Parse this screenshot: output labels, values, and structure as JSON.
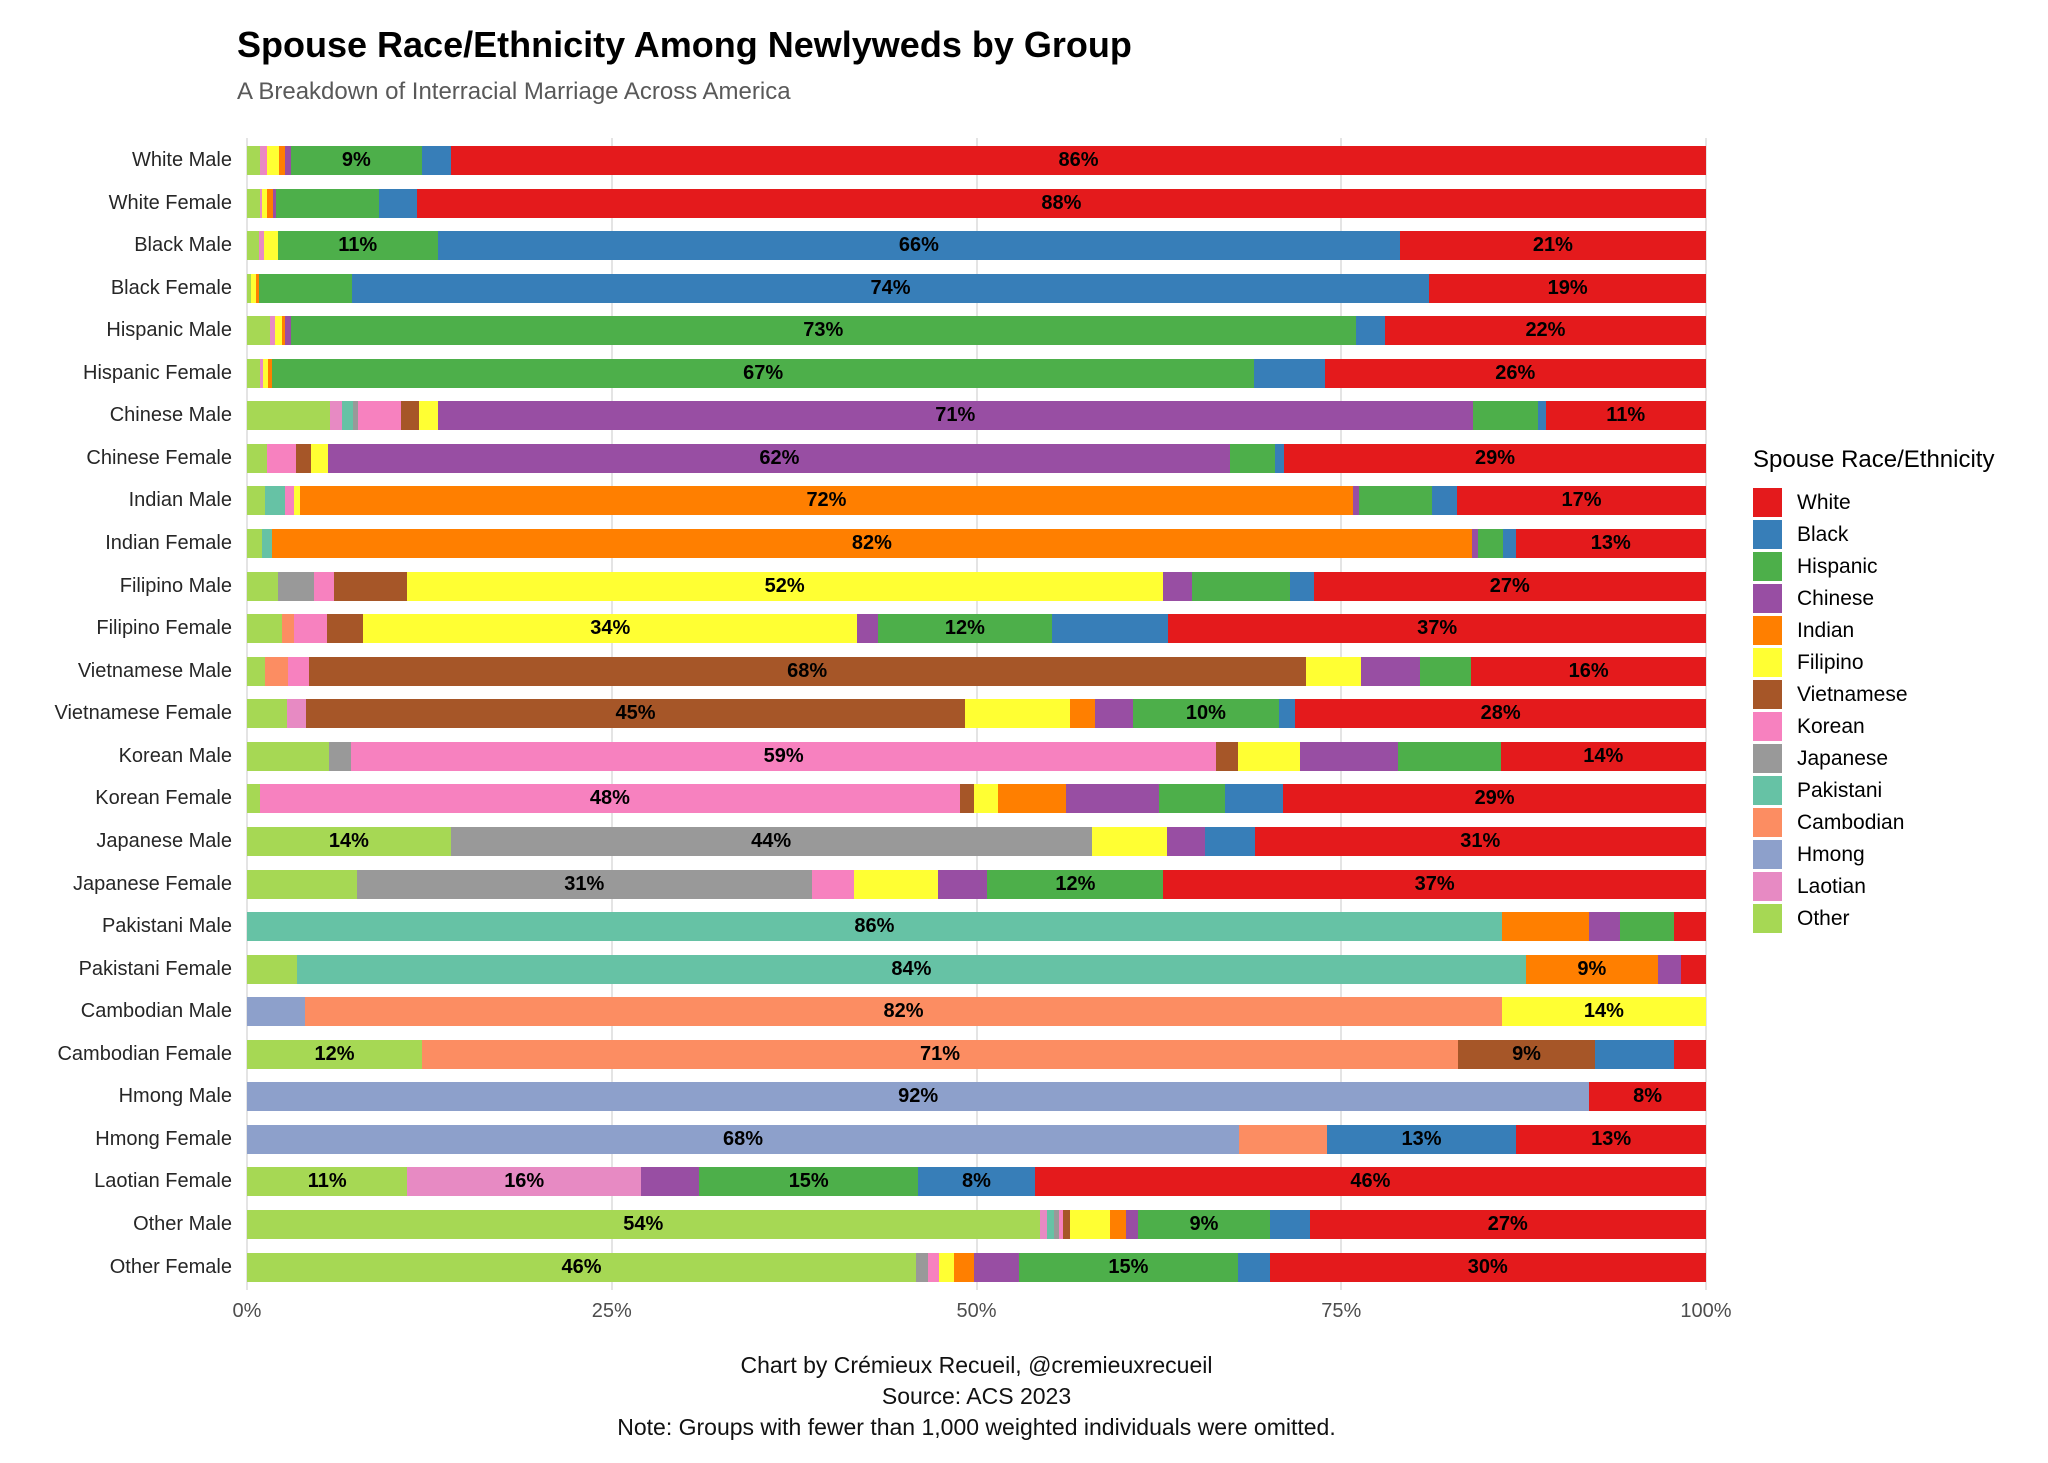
{
  "title": "Spouse Race/Ethnicity Among Newlyweds by Group",
  "subtitle": "A Breakdown of Interracial Marriage Across America",
  "legend": {
    "title": "Spouse Race/Ethnicity"
  },
  "footer": {
    "line1": "Chart by Crémieux Recueil, @cremieuxrecueil",
    "line2": "Source: ACS 2023",
    "line3": "Note: Groups with fewer than 1,000 weighted individuals were omitted."
  },
  "chart_data": {
    "type": "bar",
    "orientation": "horizontal",
    "stacked": true,
    "units": "percent of spouses",
    "xlim": [
      0,
      100
    ],
    "x_ticks": [
      "0%",
      "25%",
      "50%",
      "75%",
      "100%"
    ],
    "grid": true,
    "legend_position": "right",
    "legend_entries": [
      "White",
      "Black",
      "Hispanic",
      "Chinese",
      "Indian",
      "Filipino",
      "Vietnamese",
      "Korean",
      "Japanese",
      "Pakistani",
      "Cambodian",
      "Hmong",
      "Laotian",
      "Other"
    ],
    "colors": {
      "White": "#E41A1C",
      "Black": "#377EB8",
      "Hispanic": "#4DAF4A",
      "Chinese": "#984EA3",
      "Indian": "#FF7F00",
      "Filipino": "#FFFF33",
      "Vietnamese": "#A65628",
      "Korean": "#F781BF",
      "Japanese": "#999999",
      "Pakistani": "#66C2A5",
      "Cambodian": "#FC8D62",
      "Hmong": "#8DA0CB",
      "Laotian": "#E78AC3",
      "Other": "#A6D854"
    },
    "stack_order": [
      "Other",
      "Laotian",
      "Hmong",
      "Cambodian",
      "Pakistani",
      "Japanese",
      "Korean",
      "Vietnamese",
      "Filipino",
      "Indian",
      "Chinese",
      "Hispanic",
      "Black",
      "White"
    ],
    "rows": [
      {
        "group": "White Male",
        "segments": [
          {
            "e": "Other",
            "v": 0.9
          },
          {
            "e": "Laotian",
            "v": 0.3
          },
          {
            "e": "Korean",
            "v": 0.2
          },
          {
            "e": "Filipino",
            "v": 0.8
          },
          {
            "e": "Indian",
            "v": 0.4
          },
          {
            "e": "Chinese",
            "v": 0.4
          },
          {
            "e": "Hispanic",
            "v": 9,
            "label": "9%"
          },
          {
            "e": "Black",
            "v": 2
          },
          {
            "e": "White",
            "v": 86,
            "label": "86%"
          }
        ]
      },
      {
        "group": "White Female",
        "segments": [
          {
            "e": "Other",
            "v": 0.9
          },
          {
            "e": "Laotian",
            "v": 0.1
          },
          {
            "e": "Filipino",
            "v": 0.4
          },
          {
            "e": "Indian",
            "v": 0.4
          },
          {
            "e": "Chinese",
            "v": 0.2
          },
          {
            "e": "Hispanic",
            "v": 7
          },
          {
            "e": "Black",
            "v": 2.6
          },
          {
            "e": "White",
            "v": 88,
            "label": "88%"
          }
        ]
      },
      {
        "group": "Black Male",
        "segments": [
          {
            "e": "Other",
            "v": 0.8
          },
          {
            "e": "Laotian",
            "v": 0.4
          },
          {
            "e": "Filipino",
            "v": 0.9
          },
          {
            "e": "Hispanic",
            "v": 11,
            "label": "11%"
          },
          {
            "e": "Black",
            "v": 66,
            "label": "66%"
          },
          {
            "e": "White",
            "v": 21,
            "label": "21%"
          }
        ]
      },
      {
        "group": "Black Female",
        "segments": [
          {
            "e": "Other",
            "v": 0.3
          },
          {
            "e": "Filipino",
            "v": 0.3
          },
          {
            "e": "Indian",
            "v": 0.2
          },
          {
            "e": "Hispanic",
            "v": 6.4
          },
          {
            "e": "Black",
            "v": 74,
            "label": "74%"
          },
          {
            "e": "White",
            "v": 19,
            "label": "19%"
          }
        ]
      },
      {
        "group": "Hispanic Male",
        "segments": [
          {
            "e": "Other",
            "v": 1.6
          },
          {
            "e": "Laotian",
            "v": 0.3
          },
          {
            "e": "Filipino",
            "v": 0.5
          },
          {
            "e": "Indian",
            "v": 0.2
          },
          {
            "e": "Chinese",
            "v": 0.4
          },
          {
            "e": "Hispanic",
            "v": 73,
            "label": "73%"
          },
          {
            "e": "Black",
            "v": 2
          },
          {
            "e": "White",
            "v": 22,
            "label": "22%"
          }
        ]
      },
      {
        "group": "Hispanic Female",
        "segments": [
          {
            "e": "Other",
            "v": 0.9
          },
          {
            "e": "Laotian",
            "v": 0.2
          },
          {
            "e": "Filipino",
            "v": 0.3
          },
          {
            "e": "Indian",
            "v": 0.3
          },
          {
            "e": "Hispanic",
            "v": 67,
            "label": "67%"
          },
          {
            "e": "Black",
            "v": 4.8
          },
          {
            "e": "White",
            "v": 26,
            "label": "26%"
          }
        ]
      },
      {
        "group": "Chinese Male",
        "segments": [
          {
            "e": "Other",
            "v": 5.7
          },
          {
            "e": "Laotian",
            "v": 0.8
          },
          {
            "e": "Pakistani",
            "v": 0.8
          },
          {
            "e": "Japanese",
            "v": 0.3
          },
          {
            "e": "Korean",
            "v": 3
          },
          {
            "e": "Vietnamese",
            "v": 1.2
          },
          {
            "e": "Filipino",
            "v": 1.3
          },
          {
            "e": "Chinese",
            "v": 71,
            "label": "71%"
          },
          {
            "e": "Hispanic",
            "v": 4.5
          },
          {
            "e": "Black",
            "v": 0.5
          },
          {
            "e": "White",
            "v": 11,
            "label": "11%"
          }
        ]
      },
      {
        "group": "Chinese Female",
        "segments": [
          {
            "e": "Other",
            "v": 1.4
          },
          {
            "e": "Korean",
            "v": 2
          },
          {
            "e": "Vietnamese",
            "v": 1
          },
          {
            "e": "Filipino",
            "v": 1.2
          },
          {
            "e": "Chinese",
            "v": 62,
            "label": "62%"
          },
          {
            "e": "Hispanic",
            "v": 3.1
          },
          {
            "e": "Black",
            "v": 0.6
          },
          {
            "e": "White",
            "v": 29,
            "label": "29%"
          }
        ]
      },
      {
        "group": "Indian Male",
        "segments": [
          {
            "e": "Other",
            "v": 1.2
          },
          {
            "e": "Pakistani",
            "v": 1.4
          },
          {
            "e": "Korean",
            "v": 0.6
          },
          {
            "e": "Filipino",
            "v": 0.4
          },
          {
            "e": "Indian",
            "v": 72,
            "label": "72%"
          },
          {
            "e": "Chinese",
            "v": 0.4
          },
          {
            "e": "Hispanic",
            "v": 5
          },
          {
            "e": "Black",
            "v": 1.7
          },
          {
            "e": "White",
            "v": 17,
            "label": "17%"
          }
        ]
      },
      {
        "group": "Indian Female",
        "segments": [
          {
            "e": "Other",
            "v": 1
          },
          {
            "e": "Pakistani",
            "v": 0.7
          },
          {
            "e": "Indian",
            "v": 82,
            "label": "82%"
          },
          {
            "e": "Chinese",
            "v": 0.4
          },
          {
            "e": "Hispanic",
            "v": 1.7
          },
          {
            "e": "Black",
            "v": 0.9
          },
          {
            "e": "White",
            "v": 13,
            "label": "13%"
          }
        ]
      },
      {
        "group": "Filipino Male",
        "segments": [
          {
            "e": "Other",
            "v": 2.1
          },
          {
            "e": "Japanese",
            "v": 2.5
          },
          {
            "e": "Korean",
            "v": 1.4
          },
          {
            "e": "Vietnamese",
            "v": 5
          },
          {
            "e": "Filipino",
            "v": 52,
            "label": "52%"
          },
          {
            "e": "Chinese",
            "v": 2
          },
          {
            "e": "Hispanic",
            "v": 6.8
          },
          {
            "e": "Black",
            "v": 1.6
          },
          {
            "e": "White",
            "v": 27,
            "label": "27%"
          }
        ]
      },
      {
        "group": "Filipino Female",
        "segments": [
          {
            "e": "Other",
            "v": 2.4
          },
          {
            "e": "Cambodian",
            "v": 0.8
          },
          {
            "e": "Korean",
            "v": 2.3
          },
          {
            "e": "Vietnamese",
            "v": 2.5
          },
          {
            "e": "Filipino",
            "v": 34,
            "label": "34%"
          },
          {
            "e": "Chinese",
            "v": 1.4
          },
          {
            "e": "Hispanic",
            "v": 12,
            "label": "12%"
          },
          {
            "e": "Black",
            "v": 8
          },
          {
            "e": "White",
            "v": 37,
            "label": "37%"
          }
        ]
      },
      {
        "group": "Vietnamese Male",
        "segments": [
          {
            "e": "Other",
            "v": 1.2
          },
          {
            "e": "Cambodian",
            "v": 1.6
          },
          {
            "e": "Korean",
            "v": 1.4
          },
          {
            "e": "Vietnamese",
            "v": 68,
            "label": "68%"
          },
          {
            "e": "Filipino",
            "v": 3.8
          },
          {
            "e": "Chinese",
            "v": 4
          },
          {
            "e": "Hispanic",
            "v": 3.5
          },
          {
            "e": "White",
            "v": 16,
            "label": "16%"
          }
        ]
      },
      {
        "group": "Vietnamese Female",
        "segments": [
          {
            "e": "Other",
            "v": 2.7
          },
          {
            "e": "Laotian",
            "v": 1.3
          },
          {
            "e": "Vietnamese",
            "v": 45,
            "label": "45%"
          },
          {
            "e": "Filipino",
            "v": 7.1
          },
          {
            "e": "Indian",
            "v": 1.7
          },
          {
            "e": "Chinese",
            "v": 2.6
          },
          {
            "e": "Hispanic",
            "v": 10,
            "label": "10%"
          },
          {
            "e": "Black",
            "v": 1.1
          },
          {
            "e": "White",
            "v": 28,
            "label": "28%"
          }
        ]
      },
      {
        "group": "Korean Male",
        "segments": [
          {
            "e": "Other",
            "v": 5.6
          },
          {
            "e": "Japanese",
            "v": 1.5
          },
          {
            "e": "Korean",
            "v": 59,
            "label": "59%"
          },
          {
            "e": "Vietnamese",
            "v": 1.5
          },
          {
            "e": "Filipino",
            "v": 4.2
          },
          {
            "e": "Chinese",
            "v": 6.7
          },
          {
            "e": "Hispanic",
            "v": 7
          },
          {
            "e": "White",
            "v": 14,
            "label": "14%"
          }
        ]
      },
      {
        "group": "Korean Female",
        "segments": [
          {
            "e": "Other",
            "v": 0.9
          },
          {
            "e": "Korean",
            "v": 48,
            "label": "48%"
          },
          {
            "e": "Vietnamese",
            "v": 1
          },
          {
            "e": "Filipino",
            "v": 1.6
          },
          {
            "e": "Indian",
            "v": 4.7
          },
          {
            "e": "Chinese",
            "v": 6.4
          },
          {
            "e": "Hispanic",
            "v": 4.5
          },
          {
            "e": "Black",
            "v": 4
          },
          {
            "e": "White",
            "v": 29,
            "label": "29%"
          }
        ]
      },
      {
        "group": "Japanese Male",
        "segments": [
          {
            "e": "Other",
            "v": 14,
            "label": "14%"
          },
          {
            "e": "Japanese",
            "v": 44,
            "label": "44%"
          },
          {
            "e": "Filipino",
            "v": 5.2
          },
          {
            "e": "Chinese",
            "v": 2.6
          },
          {
            "e": "Black",
            "v": 3.4
          },
          {
            "e": "White",
            "v": 31,
            "label": "31%"
          }
        ]
      },
      {
        "group": "Japanese Female",
        "segments": [
          {
            "e": "Other",
            "v": 7.5
          },
          {
            "e": "Japanese",
            "v": 31,
            "label": "31%"
          },
          {
            "e": "Korean",
            "v": 2.9
          },
          {
            "e": "Filipino",
            "v": 5.7
          },
          {
            "e": "Chinese",
            "v": 3.4
          },
          {
            "e": "Hispanic",
            "v": 12,
            "label": "12%"
          },
          {
            "e": "White",
            "v": 37,
            "label": "37%"
          }
        ]
      },
      {
        "group": "Pakistani Male",
        "segments": [
          {
            "e": "Pakistani",
            "v": 86,
            "label": "86%"
          },
          {
            "e": "Indian",
            "v": 6
          },
          {
            "e": "Chinese",
            "v": 2.1
          },
          {
            "e": "Hispanic",
            "v": 3.7
          },
          {
            "e": "White",
            "v": 2.2
          }
        ]
      },
      {
        "group": "Pakistani Female",
        "segments": [
          {
            "e": "Other",
            "v": 3.4
          },
          {
            "e": "Pakistani",
            "v": 84,
            "label": "84%"
          },
          {
            "e": "Indian",
            "v": 9,
            "label": "9%"
          },
          {
            "e": "Chinese",
            "v": 1.6
          },
          {
            "e": "White",
            "v": 1.7
          }
        ]
      },
      {
        "group": "Cambodian Male",
        "segments": [
          {
            "e": "Hmong",
            "v": 4
          },
          {
            "e": "Cambodian",
            "v": 82,
            "label": "82%"
          },
          {
            "e": "Filipino",
            "v": 14,
            "label": "14%"
          }
        ]
      },
      {
        "group": "Cambodian Female",
        "segments": [
          {
            "e": "Other",
            "v": 12,
            "label": "12%"
          },
          {
            "e": "Cambodian",
            "v": 71,
            "label": "71%"
          },
          {
            "e": "Vietnamese",
            "v": 9.4,
            "label": "9%"
          },
          {
            "e": "Black",
            "v": 5.4
          },
          {
            "e": "White",
            "v": 2.2
          }
        ]
      },
      {
        "group": "Hmong Male",
        "segments": [
          {
            "e": "Hmong",
            "v": 92,
            "label": "92%"
          },
          {
            "e": "White",
            "v": 8,
            "label": "8%"
          }
        ]
      },
      {
        "group": "Hmong Female",
        "segments": [
          {
            "e": "Hmong",
            "v": 68,
            "label": "68%"
          },
          {
            "e": "Cambodian",
            "v": 6
          },
          {
            "e": "Black",
            "v": 13,
            "label": "13%"
          },
          {
            "e": "White",
            "v": 13,
            "label": "13%"
          }
        ]
      },
      {
        "group": "Laotian Female",
        "segments": [
          {
            "e": "Other",
            "v": 11,
            "label": "11%"
          },
          {
            "e": "Laotian",
            "v": 16,
            "label": "16%"
          },
          {
            "e": "Chinese",
            "v": 4
          },
          {
            "e": "Hispanic",
            "v": 15,
            "label": "15%"
          },
          {
            "e": "Black",
            "v": 8,
            "label": "8%"
          },
          {
            "e": "White",
            "v": 46,
            "label": "46%"
          }
        ]
      },
      {
        "group": "Other Male",
        "segments": [
          {
            "e": "Other",
            "v": 54,
            "label": "54%"
          },
          {
            "e": "Laotian",
            "v": 0.5
          },
          {
            "e": "Pakistani",
            "v": 0.5
          },
          {
            "e": "Japanese",
            "v": 0.3
          },
          {
            "e": "Korean",
            "v": 0.3
          },
          {
            "e": "Vietnamese",
            "v": 0.5
          },
          {
            "e": "Filipino",
            "v": 2.7
          },
          {
            "e": "Indian",
            "v": 1.1
          },
          {
            "e": "Chinese",
            "v": 0.8
          },
          {
            "e": "Hispanic",
            "v": 9,
            "label": "9%"
          },
          {
            "e": "Black",
            "v": 2.7
          },
          {
            "e": "White",
            "v": 27,
            "label": "27%"
          }
        ]
      },
      {
        "group": "Other Female",
        "segments": [
          {
            "e": "Other",
            "v": 46,
            "label": "46%"
          },
          {
            "e": "Japanese",
            "v": 0.8
          },
          {
            "e": "Korean",
            "v": 0.8
          },
          {
            "e": "Filipino",
            "v": 1
          },
          {
            "e": "Indian",
            "v": 1.4
          },
          {
            "e": "Chinese",
            "v": 3.1
          },
          {
            "e": "Hispanic",
            "v": 15,
            "label": "15%"
          },
          {
            "e": "Black",
            "v": 2.2
          },
          {
            "e": "White",
            "v": 30,
            "label": "30%"
          }
        ]
      }
    ]
  }
}
